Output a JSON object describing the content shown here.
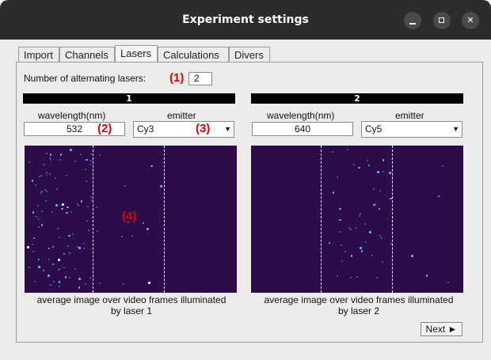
{
  "window": {
    "title": "Experiment settings",
    "controls": [
      "minimize-icon",
      "maximize-icon",
      "close-icon"
    ],
    "close_glyph": "✕"
  },
  "tabs": [
    {
      "label": "Import",
      "active": false
    },
    {
      "label": "Channels",
      "active": false
    },
    {
      "label": "Lasers",
      "active": true
    },
    {
      "label": "Calculations",
      "active": false
    },
    {
      "label": "Divers",
      "active": false
    }
  ],
  "lasers": {
    "num_label": "Number of alternating lasers:",
    "num_value": "2",
    "laser1": {
      "header": "1",
      "wavelength_label": "wavelength(nm)",
      "wavelength_value": "532",
      "emitter_label": "emitter",
      "emitter_value": "Cy3",
      "caption_line1": "average image over video frames illuminated",
      "caption_line2": "by laser 1"
    },
    "laser2": {
      "header": "2",
      "wavelength_label": "wavelength(nm)",
      "wavelength_value": "640",
      "emitter_label": "emitter",
      "emitter_value": "Cy5",
      "caption_line1": "average image over video frames illuminated",
      "caption_line2": "by laser 2"
    }
  },
  "annotations": {
    "a1": "(1)",
    "a2": "(2)",
    "a3": "(3)",
    "a4": "(4)"
  },
  "next_button": "Next ►",
  "dropdown_glyph": "▼",
  "colors": {
    "image_bg": "#2d0c4a",
    "annotation": "#e00000",
    "titlebar": "#2c2c2c"
  }
}
